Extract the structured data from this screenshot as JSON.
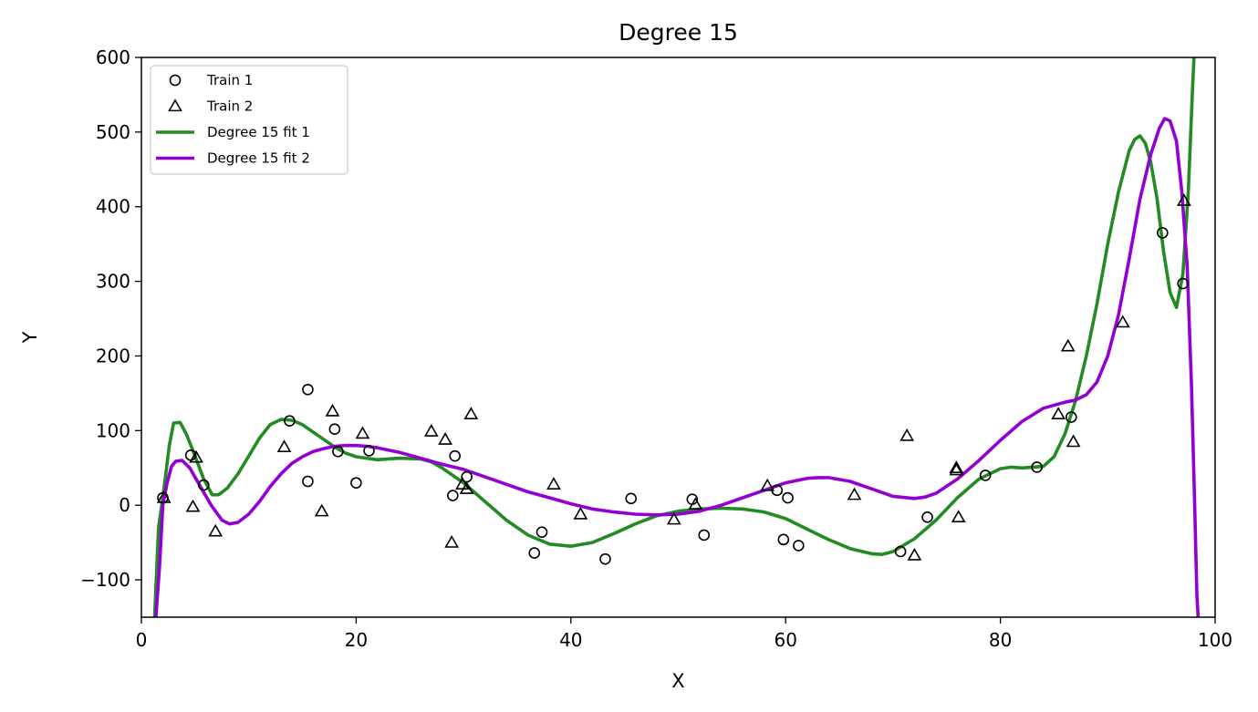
{
  "chart_data": {
    "type": "scatter",
    "title": "Degree 15",
    "xlabel": "X",
    "ylabel": "Y",
    "xlim": [
      0,
      100
    ],
    "ylim": [
      -150,
      600
    ],
    "xticks": [
      0,
      20,
      40,
      60,
      80,
      100
    ],
    "yticks": [
      -100,
      0,
      100,
      200,
      300,
      400,
      500,
      600
    ],
    "ytick_labels": [
      "−100",
      "0",
      "100",
      "200",
      "300",
      "400",
      "500",
      "600"
    ],
    "xtick_labels": [
      "0",
      "20",
      "40",
      "60",
      "80",
      "100"
    ],
    "grid": false,
    "legend_position": "top-left",
    "series": [
      {
        "name": "Train 1",
        "kind": "scatter",
        "marker": "circle",
        "color": "#000000",
        "points": [
          [
            2.0,
            10
          ],
          [
            4.6,
            67
          ],
          [
            5.8,
            27
          ],
          [
            13.8,
            113
          ],
          [
            15.5,
            155
          ],
          [
            15.5,
            32
          ],
          [
            18.0,
            102
          ],
          [
            18.3,
            72
          ],
          [
            20.0,
            30
          ],
          [
            21.2,
            73
          ],
          [
            29.0,
            13
          ],
          [
            29.2,
            66
          ],
          [
            30.3,
            38
          ],
          [
            36.6,
            -64
          ],
          [
            37.3,
            -36
          ],
          [
            43.2,
            -72
          ],
          [
            45.6,
            9
          ],
          [
            51.3,
            8
          ],
          [
            52.4,
            -40
          ],
          [
            59.2,
            20
          ],
          [
            59.8,
            -46
          ],
          [
            60.2,
            10
          ],
          [
            61.2,
            -54
          ],
          [
            70.7,
            -62
          ],
          [
            73.2,
            -16
          ],
          [
            78.6,
            40
          ],
          [
            83.4,
            51
          ],
          [
            86.6,
            118
          ],
          [
            95.1,
            365
          ],
          [
            97.0,
            297
          ]
        ]
      },
      {
        "name": "Train 2",
        "kind": "scatter",
        "marker": "triangle",
        "color": "#000000",
        "points": [
          [
            2.1,
            10
          ],
          [
            4.8,
            -2
          ],
          [
            5.1,
            64
          ],
          [
            6.9,
            -35
          ],
          [
            13.3,
            78
          ],
          [
            16.8,
            -8
          ],
          [
            17.8,
            126
          ],
          [
            20.6,
            96
          ],
          [
            27.0,
            99
          ],
          [
            28.3,
            88
          ],
          [
            28.9,
            -50
          ],
          [
            29.9,
            28
          ],
          [
            30.3,
            22
          ],
          [
            30.7,
            122
          ],
          [
            38.4,
            28
          ],
          [
            40.9,
            -12
          ],
          [
            49.6,
            -19
          ],
          [
            51.6,
            1
          ],
          [
            58.3,
            26
          ],
          [
            66.4,
            14
          ],
          [
            71.3,
            93
          ],
          [
            72.0,
            -67
          ],
          [
            75.9,
            50
          ],
          [
            75.9,
            47
          ],
          [
            76.1,
            -16
          ],
          [
            85.4,
            122
          ],
          [
            86.3,
            213
          ],
          [
            86.8,
            85
          ],
          [
            91.4,
            245
          ],
          [
            97.1,
            408
          ]
        ]
      },
      {
        "name": "Degree 15 fit 1",
        "kind": "line",
        "color": "#228b22",
        "points": [
          [
            1.2,
            -160
          ],
          [
            1.6,
            -30
          ],
          [
            2.0,
            10
          ],
          [
            2.6,
            80
          ],
          [
            3.0,
            110
          ],
          [
            3.6,
            111
          ],
          [
            4.2,
            95
          ],
          [
            5.0,
            66
          ],
          [
            5.8,
            35
          ],
          [
            6.6,
            14
          ],
          [
            7.2,
            14
          ],
          [
            8.0,
            23
          ],
          [
            9.0,
            42
          ],
          [
            10.0,
            66
          ],
          [
            11.0,
            90
          ],
          [
            12.0,
            108
          ],
          [
            13.0,
            115
          ],
          [
            14.0,
            114
          ],
          [
            15.0,
            108
          ],
          [
            16.0,
            98
          ],
          [
            17.0,
            88
          ],
          [
            18.0,
            78
          ],
          [
            19.0,
            70
          ],
          [
            20.0,
            65
          ],
          [
            22.0,
            61
          ],
          [
            24.0,
            63
          ],
          [
            26.0,
            62
          ],
          [
            27.0,
            58
          ],
          [
            28.0,
            50
          ],
          [
            30.0,
            30
          ],
          [
            32.0,
            5
          ],
          [
            34.0,
            -20
          ],
          [
            36.0,
            -40
          ],
          [
            38.0,
            -52
          ],
          [
            40.0,
            -55
          ],
          [
            42.0,
            -50
          ],
          [
            44.0,
            -38
          ],
          [
            46.0,
            -25
          ],
          [
            48.0,
            -14
          ],
          [
            50.0,
            -8
          ],
          [
            52.0,
            -5
          ],
          [
            54.0,
            -4
          ],
          [
            56.0,
            -5
          ],
          [
            58.0,
            -9
          ],
          [
            60.0,
            -18
          ],
          [
            62.0,
            -32
          ],
          [
            64.0,
            -46
          ],
          [
            66.0,
            -58
          ],
          [
            68.0,
            -65
          ],
          [
            69.0,
            -66
          ],
          [
            70.0,
            -62
          ],
          [
            72.0,
            -45
          ],
          [
            74.0,
            -20
          ],
          [
            76.0,
            10
          ],
          [
            78.0,
            35
          ],
          [
            80.0,
            49
          ],
          [
            81.0,
            51
          ],
          [
            82.0,
            50
          ],
          [
            84.0,
            52
          ],
          [
            85.0,
            65
          ],
          [
            86.0,
            95
          ],
          [
            87.0,
            140
          ],
          [
            88.0,
            200
          ],
          [
            89.0,
            270
          ],
          [
            90.0,
            350
          ],
          [
            91.0,
            420
          ],
          [
            92.0,
            475
          ],
          [
            92.5,
            490
          ],
          [
            93.0,
            495
          ],
          [
            93.5,
            485
          ],
          [
            94.0,
            460
          ],
          [
            94.6,
            410
          ],
          [
            95.2,
            340
          ],
          [
            95.8,
            285
          ],
          [
            96.4,
            265
          ],
          [
            97.0,
            310
          ],
          [
            97.5,
            420
          ],
          [
            97.9,
            560
          ],
          [
            98.2,
            650
          ]
        ]
      },
      {
        "name": "Degree 15 fit 2",
        "kind": "line",
        "color": "#9400d3",
        "points": [
          [
            1.3,
            -160
          ],
          [
            1.7,
            -80
          ],
          [
            2.0,
            0
          ],
          [
            2.4,
            30
          ],
          [
            2.8,
            52
          ],
          [
            3.2,
            59
          ],
          [
            3.8,
            60
          ],
          [
            4.5,
            50
          ],
          [
            5.5,
            25
          ],
          [
            6.5,
            0
          ],
          [
            7.5,
            -20
          ],
          [
            8.2,
            -25
          ],
          [
            9.0,
            -23
          ],
          [
            10.0,
            -12
          ],
          [
            11.0,
            5
          ],
          [
            12.0,
            25
          ],
          [
            13.0,
            42
          ],
          [
            14.0,
            56
          ],
          [
            15.0,
            65
          ],
          [
            16.0,
            72
          ],
          [
            17.0,
            76
          ],
          [
            18.0,
            79
          ],
          [
            19.0,
            80
          ],
          [
            20.0,
            80
          ],
          [
            21.0,
            79
          ],
          [
            22.0,
            77
          ],
          [
            24.0,
            71
          ],
          [
            26.0,
            63
          ],
          [
            28.0,
            55
          ],
          [
            30.0,
            48
          ],
          [
            32.0,
            38
          ],
          [
            34.0,
            28
          ],
          [
            36.0,
            18
          ],
          [
            38.0,
            10
          ],
          [
            40.0,
            2
          ],
          [
            42.0,
            -5
          ],
          [
            44.0,
            -9
          ],
          [
            46.0,
            -12
          ],
          [
            48.0,
            -13
          ],
          [
            50.0,
            -12
          ],
          [
            52.0,
            -8
          ],
          [
            54.0,
            0
          ],
          [
            56.0,
            10
          ],
          [
            58.0,
            20
          ],
          [
            60.0,
            30
          ],
          [
            62.0,
            36
          ],
          [
            63.0,
            37
          ],
          [
            64.0,
            37
          ],
          [
            66.0,
            32
          ],
          [
            68.0,
            22
          ],
          [
            70.0,
            12
          ],
          [
            72.0,
            9
          ],
          [
            73.0,
            11
          ],
          [
            74.0,
            16
          ],
          [
            76.0,
            35
          ],
          [
            78.0,
            60
          ],
          [
            80.0,
            87
          ],
          [
            82.0,
            112
          ],
          [
            84.0,
            130
          ],
          [
            86.0,
            138
          ],
          [
            87.0,
            141
          ],
          [
            88.0,
            148
          ],
          [
            89.0,
            165
          ],
          [
            90.0,
            200
          ],
          [
            91.0,
            255
          ],
          [
            92.0,
            330
          ],
          [
            93.0,
            410
          ],
          [
            94.0,
            470
          ],
          [
            94.8,
            505
          ],
          [
            95.3,
            518
          ],
          [
            95.8,
            515
          ],
          [
            96.4,
            488
          ],
          [
            96.9,
            420
          ],
          [
            97.4,
            320
          ],
          [
            97.8,
            160
          ],
          [
            98.1,
            0
          ],
          [
            98.3,
            -120
          ],
          [
            98.45,
            -160
          ]
        ]
      }
    ]
  }
}
